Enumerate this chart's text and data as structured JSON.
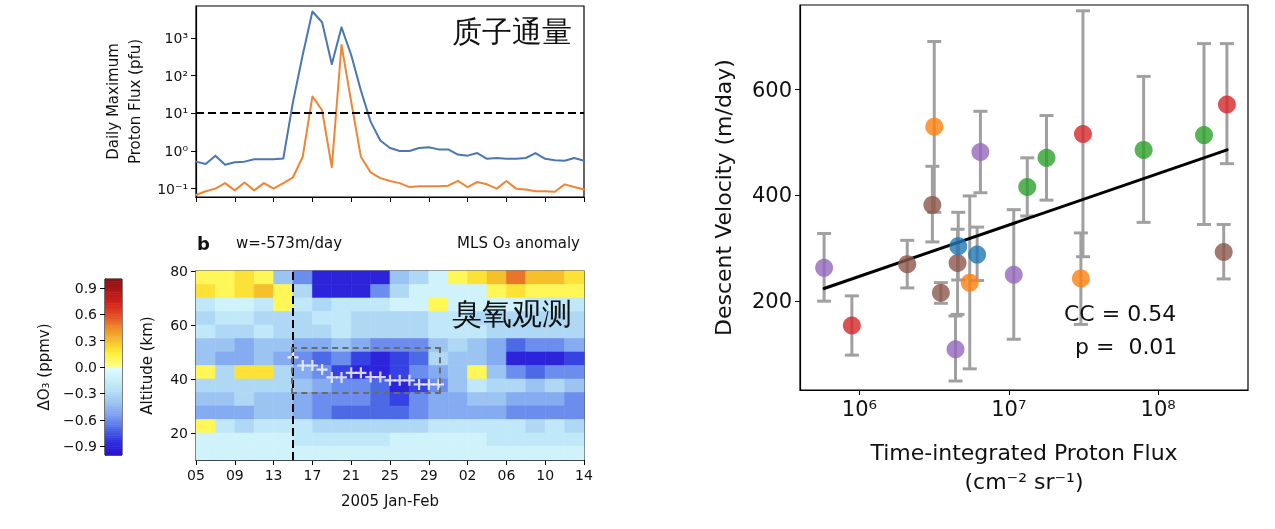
{
  "chart_data": [
    {
      "type": "line",
      "ylabel": "Daily Maximum\nProton Flux (pfu)",
      "annotations": [
        "质子通量"
      ],
      "log": "y",
      "tick_labels": "y",
      "x": [
        "--01-05",
        "--01-06",
        "--01-07",
        "--01-08",
        "--01-09",
        "--01-10",
        "--01-11",
        "--01-12",
        "--01-13",
        "--01-14",
        "--01-15",
        "--01-16",
        "--01-17",
        "--01-18",
        "--01-19",
        "--01-20",
        "--01-21",
        "--01-22",
        "--01-23",
        "--01-24",
        "--01-25",
        "--01-26",
        "--01-27",
        "--01-28",
        "--01-29",
        "--01-30",
        "--01-31",
        "--02-01",
        "--02-02",
        "--02-03",
        "--02-04",
        "--02-05",
        "--02-06",
        "--02-07",
        "--02-08",
        "--02-09",
        "--02-10",
        "--02-11",
        "--02-12",
        "--02-13",
        "--02-14"
      ],
      "series": [
        {
          "color": "#4a77b4",
          "values": [
            0.52,
            0.45,
            0.75,
            0.43,
            0.5,
            0.52,
            0.6,
            0.6,
            0.6,
            0.63,
            20,
            350,
            5000,
            2600,
            200,
            1900,
            350,
            40,
            6,
            1.9,
            1.2,
            1.0,
            1.0,
            1.2,
            1.25,
            1.1,
            1.1,
            0.8,
            0.75,
            0.88,
            0.62,
            0.65,
            0.62,
            0.62,
            0.65,
            0.88,
            0.62,
            0.57,
            0.55,
            0.65,
            0.55
          ]
        },
        {
          "color": "#ef8636",
          "values": [
            0.068,
            0.085,
            0.1,
            0.14,
            0.09,
            0.145,
            0.09,
            0.14,
            0.1,
            0.14,
            0.2,
            0.7,
            28,
            12,
            0.37,
            650,
            20,
            0.7,
            0.27,
            0.19,
            0.16,
            0.14,
            0.11,
            0.115,
            0.115,
            0.115,
            0.12,
            0.16,
            0.11,
            0.15,
            0.13,
            0.1,
            0.16,
            0.1,
            0.095,
            0.085,
            0.085,
            0.083,
            0.13,
            0.11,
            0.095
          ]
        }
      ],
      "xlim": [
        "--01-05",
        "--02-14"
      ],
      "ylim": [
        0.06,
        7000
      ],
      "xticks": [
        {
          "value": "--01-05",
          "label": null
        },
        {
          "value": "--01-09",
          "label": null
        },
        {
          "value": "--01-13",
          "label": null
        },
        {
          "value": "--01-17",
          "label": null
        },
        {
          "value": "--01-21",
          "label": null
        },
        {
          "value": "--01-25",
          "label": null
        },
        {
          "value": "--01-29",
          "label": null
        },
        {
          "value": "--02-02",
          "label": null
        },
        {
          "value": "--02-06",
          "label": null
        },
        {
          "value": "--02-10",
          "label": null
        },
        {
          "value": "--02-14",
          "label": null
        }
      ],
      "yticks": [
        {
          "value": 0.1,
          "label": "10⁻¹"
        },
        {
          "value": 1,
          "label": "10⁰"
        },
        {
          "value": 10,
          "label": "10¹"
        },
        {
          "value": 100,
          "label": "10²"
        },
        {
          "value": 1000,
          "label": "10³"
        }
      ],
      "ref_lines": [
        {
          "axis": "y",
          "value": 10,
          "color": "#000000",
          "line_style": "dashed"
        }
      ]
    },
    {
      "type": "heatmap",
      "xlabel": "2005 Jan-Feb",
      "ylabel": "Altitude (km)",
      "clabel": "ΔO₃ (ppmv)",
      "annotations": [
        "b",
        "w=-573m/day",
        "MLS O₃ anomaly",
        "臭氧观测"
      ],
      "x": [
        "--01-06",
        "--01-08",
        "--01-10",
        "--01-12",
        "--01-14",
        "--01-16",
        "--01-18",
        "--01-20",
        "--01-22",
        "--01-24",
        "--01-26",
        "--01-28",
        "--01-30",
        "--02-01",
        "--02-03",
        "--02-05",
        "--02-07",
        "--02-09",
        "--02-11",
        "--02-13"
      ],
      "y": [
        77.5,
        72.5,
        67.5,
        62.5,
        57.5,
        52.5,
        47.5,
        42.5,
        37.5,
        32.5,
        27.5,
        22.5,
        17.5,
        12.5
      ],
      "cells": [
        [
          0.1,
          0.1,
          0.2,
          0.1,
          -0.4,
          -0.6,
          -0.9,
          -0.9,
          -0.9,
          -0.9,
          -0.4,
          -0.3,
          -0.1,
          0.1,
          0.2,
          0.3,
          0.5,
          0.3,
          0.3,
          0.2
        ],
        [
          0.2,
          0.1,
          0.2,
          0.3,
          0.1,
          -0.3,
          -0.9,
          -0.9,
          -0.9,
          -0.6,
          -0.3,
          -0.1,
          -0.1,
          -0.1,
          -0.1,
          0.1,
          0.2,
          0.1,
          0.1,
          0.1
        ],
        [
          -0.2,
          -0.1,
          -0.1,
          -0.2,
          0.1,
          -0.2,
          -0.3,
          -0.2,
          -0.2,
          -0.2,
          -0.1,
          -0.1,
          0.1,
          -0.1,
          -0.1,
          -0.1,
          -0.1,
          -0.2,
          -0.2,
          -0.2
        ],
        [
          -0.3,
          -0.2,
          -0.2,
          -0.3,
          -0.3,
          -0.3,
          -0.2,
          -0.2,
          -0.3,
          -0.3,
          -0.3,
          -0.3,
          -0.2,
          -0.2,
          -0.3,
          -0.3,
          -0.3,
          -0.3,
          -0.3,
          -0.3
        ],
        [
          -0.2,
          -0.3,
          -0.3,
          -0.2,
          -0.3,
          -0.3,
          -0.3,
          -0.2,
          -0.3,
          -0.3,
          -0.3,
          -0.3,
          -0.2,
          -0.2,
          -0.2,
          -0.3,
          -0.3,
          -0.3,
          -0.3,
          -0.3
        ],
        [
          -0.4,
          -0.4,
          -0.5,
          -0.4,
          -0.4,
          -0.5,
          -0.5,
          -0.4,
          -0.5,
          -0.6,
          -0.6,
          -0.6,
          -0.4,
          -0.3,
          -0.4,
          -0.5,
          -0.7,
          -0.6,
          -0.6,
          -0.5
        ],
        [
          -0.4,
          -0.5,
          -0.5,
          -0.4,
          -0.5,
          -0.6,
          -0.7,
          -0.6,
          -0.8,
          -0.9,
          -0.8,
          -0.7,
          -0.3,
          -0.4,
          -0.4,
          -0.5,
          -0.9,
          -0.9,
          -0.9,
          -0.8
        ],
        [
          0.1,
          -0.3,
          0.2,
          0.2,
          -0.3,
          -0.5,
          -0.6,
          -0.8,
          -0.9,
          -0.9,
          -0.8,
          -0.6,
          -0.5,
          -0.4,
          0.1,
          -0.4,
          -0.6,
          -0.7,
          -0.6,
          -0.6
        ],
        [
          -0.3,
          -0.3,
          -0.3,
          -0.3,
          -0.3,
          -0.4,
          -0.5,
          -0.6,
          -0.6,
          -0.7,
          -0.9,
          -0.8,
          -0.6,
          -0.4,
          -0.2,
          -0.3,
          -0.3,
          -0.4,
          -0.3,
          -0.4
        ],
        [
          -0.4,
          -0.4,
          -0.3,
          -0.4,
          -0.4,
          -0.5,
          -0.6,
          -0.6,
          -0.6,
          -0.7,
          -0.8,
          -0.6,
          -0.5,
          -0.5,
          -0.4,
          -0.4,
          -0.5,
          -0.5,
          -0.5,
          -0.6
        ],
        [
          -0.5,
          -0.5,
          -0.5,
          -0.4,
          -0.4,
          -0.5,
          -0.6,
          -0.7,
          -0.7,
          -0.7,
          -0.7,
          -0.6,
          -0.5,
          -0.5,
          -0.5,
          -0.5,
          -0.6,
          -0.6,
          -0.6,
          -0.6
        ],
        [
          0.1,
          -0.2,
          -0.3,
          -0.2,
          -0.2,
          -0.2,
          -0.3,
          -0.3,
          -0.3,
          -0.3,
          -0.3,
          -0.3,
          -0.2,
          -0.2,
          -0.2,
          -0.2,
          -0.2,
          -0.3,
          -0.2,
          -0.3
        ],
        [
          -0.1,
          -0.1,
          -0.1,
          -0.1,
          -0.1,
          -0.2,
          -0.2,
          -0.2,
          -0.2,
          -0.2,
          -0.1,
          -0.1,
          -0.1,
          -0.1,
          -0.1,
          -0.2,
          -0.2,
          -0.2,
          -0.2,
          -0.2
        ],
        [
          -0.1,
          -0.1,
          -0.1,
          -0.1,
          -0.1,
          -0.1,
          -0.1,
          -0.1,
          -0.1,
          -0.1,
          -0.1,
          -0.1,
          -0.1,
          -0.1,
          -0.1,
          -0.1,
          -0.1,
          -0.1,
          -0.1,
          -0.1
        ]
      ],
      "series": [
        {
          "type": "scatter",
          "color": "#ffffff",
          "marker": "cross",
          "x": [
            "--01-15",
            "--01-16",
            "--01-17",
            "--01-18",
            "--01-19",
            "--01-20",
            "--01-21",
            "--01-22",
            "--01-23",
            "--01-24",
            "--01-25",
            "--01-26",
            "--01-27",
            "--01-28",
            "--01-29",
            "--01-30"
          ],
          "values": [
            48,
            45,
            45,
            43.5,
            40.6,
            40.6,
            42.3,
            42.3,
            40.7,
            40.7,
            39.5,
            39.5,
            39.5,
            38,
            38,
            38
          ]
        }
      ],
      "clim": [
        -1,
        1
      ],
      "cticks": [
        {
          "value": -0.9,
          "label": "−0.9"
        },
        {
          "value": -0.6,
          "label": "−0.6"
        },
        {
          "value": -0.3,
          "label": "−0.3"
        },
        {
          "value": 0,
          "label": "0.0"
        },
        0.3,
        0.6,
        0.9
      ],
      "xlim": [
        "--01-05",
        "--02-14"
      ],
      "ylim": [
        10,
        80
      ],
      "xticks": [
        {
          "value": "--01-05",
          "label": "05"
        },
        {
          "value": "--01-09",
          "label": "09"
        },
        {
          "value": "--01-13",
          "label": "13"
        },
        {
          "value": "--01-17",
          "label": "17"
        },
        {
          "value": "--01-21",
          "label": "21"
        },
        {
          "value": "--01-25",
          "label": "25"
        },
        {
          "value": "--01-29",
          "label": "29"
        },
        {
          "value": "--02-02",
          "label": "02"
        },
        {
          "value": "--02-06",
          "label": "06"
        },
        {
          "value": "--02-10",
          "label": "10"
        },
        {
          "value": "--02-14",
          "label": "14"
        }
      ],
      "yticks": [
        20,
        40,
        60,
        80
      ],
      "ref_lines": [
        {
          "axis": "x",
          "value": "--01-15",
          "color": "#000000",
          "line_style": "dashed"
        }
      ]
    },
    {
      "type": "scatter",
      "xlabel": "Time-integrated Proton Flux\n(cm⁻² sr⁻¹)",
      "ylabel": "Descent Velocity (m/day)",
      "annotations": [
        "CC = 0.54",
        "p =  0.01"
      ],
      "log": "x",
      "series": [
        {
          "type": "scatter",
          "marker": "circle",
          "x": [
            580000,
            890000,
            2090000,
            3080000,
            3170000,
            3510000,
            4400000,
            4540000,
            4590000,
            5480000,
            6140000,
            6460000,
            10800000,
            13300000,
            17900000,
            30400000,
            31400000,
            80000000,
            203000000,
            275000000,
            289000000
          ],
          "values": [
            263,
            154,
            270,
            382,
            530,
            216,
            109,
            272,
            304,
            235,
            288,
            482,
            250,
            416,
            471,
            243,
            516,
            486,
            514,
            293,
            572
          ],
          "colors": [
            "#9467bd",
            "#d62728",
            "#8c564b",
            "#8c564b",
            "#ff7f0e",
            "#8c564b",
            "#9467bd",
            "#8c564b",
            "#1f77b4",
            "#ff7f0e",
            "#1f77b4",
            "#9467bd",
            "#9467bd",
            "#2ca02c",
            "#2ca02c",
            "#ff7f0e",
            "#d62728",
            "#2ca02c",
            "#2ca02c",
            "#8c564b",
            "#d62728"
          ],
          "errors": [
            [
              200,
              328
            ],
            [
              98,
              210
            ],
            [
              225,
              315
            ],
            [
              312,
              455
            ],
            [
              368,
              691
            ],
            [
              196,
              235
            ],
            [
              49,
              172
            ],
            [
              175,
              336
            ],
            [
              240,
              368
            ],
            [
              72,
              399
            ],
            [
              239,
              340
            ],
            [
              405,
              559
            ],
            [
              128,
              373
            ],
            [
              361,
              471
            ],
            [
              391,
              551
            ],
            [
              156,
              329
            ],
            [
              284,
              749
            ],
            [
              349,
              625
            ],
            [
              345,
              687
            ],
            [
              242,
              345
            ],
            [
              460,
              687
            ]
          ]
        },
        {
          "type": "line",
          "color": "#000000",
          "x": [
            580000,
            290000000
          ],
          "values": [
            224,
            486
          ]
        }
      ],
      "xlim": [
        400000,
        400000000
      ],
      "ylim": [
        32,
        760
      ],
      "xticks": [
        {
          "value": 1000000,
          "label": "10⁶"
        },
        {
          "value": 10000000,
          "label": "10⁷"
        },
        {
          "value": 100000000,
          "label": "10⁸"
        }
      ],
      "yticks": [
        200,
        400,
        600
      ]
    }
  ]
}
